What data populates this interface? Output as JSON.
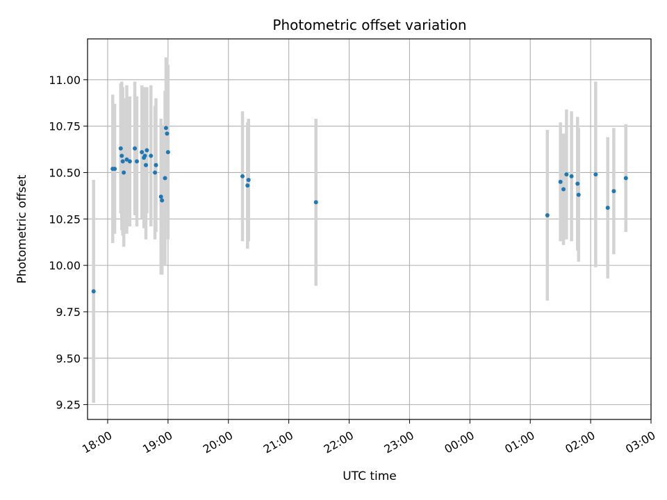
{
  "chart_data": {
    "type": "scatter",
    "title": "Photometric offset variation",
    "xlabel": "UTC time",
    "ylabel": "Photometric offset",
    "xlim": [
      "17:40",
      "03:00"
    ],
    "ylim": [
      9.17,
      11.22
    ],
    "xticks": [
      "18:00",
      "19:00",
      "20:00",
      "21:00",
      "22:00",
      "23:00",
      "00:00",
      "01:00",
      "02:00",
      "03:00"
    ],
    "yticks": [
      "9.25",
      "9.50",
      "9.75",
      "10.00",
      "10.25",
      "10.50",
      "10.75",
      "11.00"
    ],
    "grid": true,
    "colors": {
      "marker": "#1f77b4",
      "errorbar": "#d3d3d3",
      "grid": "#b0b0b0"
    },
    "points": [
      {
        "time": "17:46",
        "offset": 9.86,
        "err": 0.6
      },
      {
        "time": "18:05",
        "offset": 10.52,
        "err": 0.4
      },
      {
        "time": "18:07",
        "offset": 10.52,
        "err": 0.35
      },
      {
        "time": "18:13",
        "offset": 10.63,
        "err": 0.35
      },
      {
        "time": "18:14",
        "offset": 10.59,
        "err": 0.4
      },
      {
        "time": "18:15",
        "offset": 10.56,
        "err": 0.4
      },
      {
        "time": "18:16",
        "offset": 10.5,
        "err": 0.4
      },
      {
        "time": "18:19",
        "offset": 10.57,
        "err": 0.4
      },
      {
        "time": "18:22",
        "offset": 10.56,
        "err": 0.35
      },
      {
        "time": "18:27",
        "offset": 10.63,
        "err": 0.36
      },
      {
        "time": "18:29",
        "offset": 10.56,
        "err": 0.35
      },
      {
        "time": "18:34",
        "offset": 10.61,
        "err": 0.36
      },
      {
        "time": "18:36",
        "offset": 10.58,
        "err": 0.38
      },
      {
        "time": "18:37",
        "offset": 10.59,
        "err": 0.37
      },
      {
        "time": "18:38",
        "offset": 10.54,
        "err": 0.4
      },
      {
        "time": "18:39",
        "offset": 10.62,
        "err": 0.34
      },
      {
        "time": "18:43",
        "offset": 10.59,
        "err": 0.38
      },
      {
        "time": "18:47",
        "offset": 10.5,
        "err": 0.36
      },
      {
        "time": "18:48",
        "offset": 10.54,
        "err": 0.36
      },
      {
        "time": "18:53",
        "offset": 10.37,
        "err": 0.42
      },
      {
        "time": "18:54",
        "offset": 10.35,
        "err": 0.4
      },
      {
        "time": "18:57",
        "offset": 10.47,
        "err": 0.47
      },
      {
        "time": "18:58",
        "offset": 10.74,
        "err": 0.38
      },
      {
        "time": "18:59",
        "offset": 10.71,
        "err": 0.41
      },
      {
        "time": "19:00",
        "offset": 10.61,
        "err": 0.47
      },
      {
        "time": "20:14",
        "offset": 10.48,
        "err": 0.35
      },
      {
        "time": "20:19",
        "offset": 10.43,
        "err": 0.34
      },
      {
        "time": "20:20",
        "offset": 10.46,
        "err": 0.33
      },
      {
        "time": "21:27",
        "offset": 10.34,
        "err": 0.45
      },
      {
        "time": "01:17",
        "offset": 10.27,
        "err": 0.46
      },
      {
        "time": "01:30",
        "offset": 10.45,
        "err": 0.32
      },
      {
        "time": "01:33",
        "offset": 10.41,
        "err": 0.3
      },
      {
        "time": "01:36",
        "offset": 10.49,
        "err": 0.35
      },
      {
        "time": "01:41",
        "offset": 10.48,
        "err": 0.35
      },
      {
        "time": "01:47",
        "offset": 10.44,
        "err": 0.36
      },
      {
        "time": "01:48",
        "offset": 10.38,
        "err": 0.36
      },
      {
        "time": "02:05",
        "offset": 10.49,
        "err": 0.5
      },
      {
        "time": "02:17",
        "offset": 10.31,
        "err": 0.38
      },
      {
        "time": "02:23",
        "offset": 10.4,
        "err": 0.34
      },
      {
        "time": "02:35",
        "offset": 10.47,
        "err": 0.29
      }
    ]
  }
}
